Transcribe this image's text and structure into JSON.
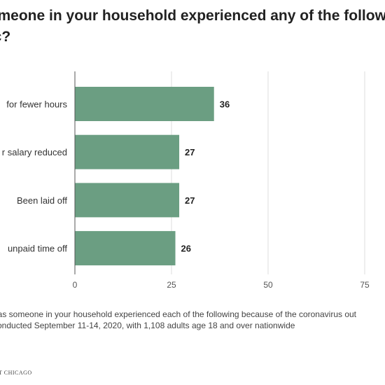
{
  "title": {
    "line1": "someone in your household experienced any of the follow",
    "line2": "nic?"
  },
  "chart_data": {
    "type": "bar",
    "orientation": "horizontal",
    "categories": [
      "for fewer hours",
      "r salary reduced",
      "Been laid off",
      "unpaid time off"
    ],
    "values": [
      36,
      27,
      27,
      26
    ],
    "xlim": [
      0,
      75
    ],
    "xticks": [
      0,
      25,
      50,
      75
    ],
    "grid": true,
    "bar_color": "#6b9e82"
  },
  "footnote": {
    "line1": "has someone in your household experienced each of the following because of the coronavirus out",
    "line2": "conducted September 11-14, 2020, with 1,108 adults age 18 and over nationwide"
  },
  "source_text": "T CHICAGO"
}
